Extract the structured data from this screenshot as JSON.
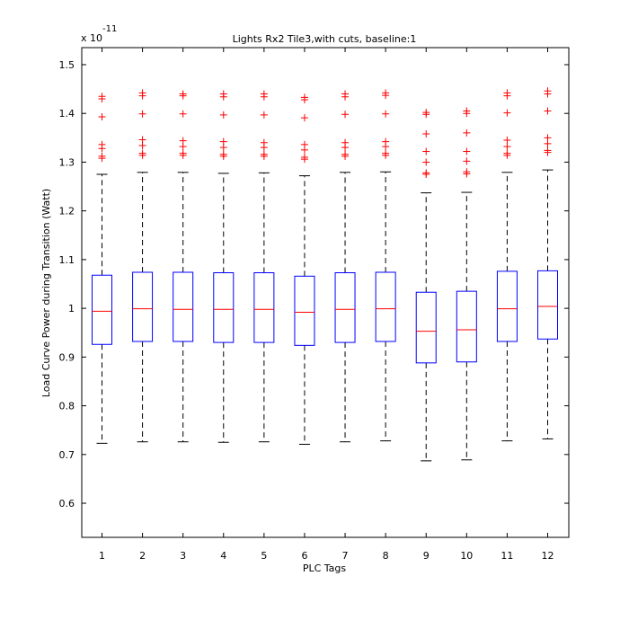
{
  "chart_data": {
    "type": "box",
    "title": "Lights Rx2 Tile3,with cuts, baseline:1",
    "xlabel": "PLC Tags",
    "ylabel": "Load Curve Power during Transition (Watt)",
    "y_multiplier": {
      "base": "x 10",
      "exponent": "-11"
    },
    "ylim": [
      0.53,
      1.535
    ],
    "yticks": [
      {
        "value": 0.6,
        "label": "0.6"
      },
      {
        "value": 0.7,
        "label": "0.7"
      },
      {
        "value": 0.8,
        "label": "0.8"
      },
      {
        "value": 0.9,
        "label": "0.9"
      },
      {
        "value": 1.0,
        "label": "1"
      },
      {
        "value": 1.1,
        "label": "1.1"
      },
      {
        "value": 1.2,
        "label": "1.2"
      },
      {
        "value": 1.3,
        "label": "1.3"
      },
      {
        "value": 1.4,
        "label": "1.4"
      },
      {
        "value": 1.5,
        "label": "1.5"
      }
    ],
    "categories": [
      "1",
      "2",
      "3",
      "4",
      "5",
      "6",
      "7",
      "8",
      "9",
      "10",
      "11",
      "12"
    ],
    "grid": false,
    "colors": {
      "box": "#0000ff",
      "median": "#ff0000",
      "outlier": "#ff0000",
      "whisker": "#000000"
    },
    "boxes": [
      {
        "whisker_low": 0.723,
        "q1": 0.926,
        "median": 0.994,
        "q3": 1.068,
        "whisker_high": 1.275,
        "outliers": [
          1.435,
          1.43,
          1.393,
          1.336,
          1.328,
          1.312,
          1.308
        ]
      },
      {
        "whisker_low": 0.726,
        "q1": 0.932,
        "median": 0.999,
        "q3": 1.074,
        "whisker_high": 1.279,
        "outliers": [
          1.442,
          1.436,
          1.399,
          1.346,
          1.334,
          1.318,
          1.314
        ]
      },
      {
        "whisker_low": 0.726,
        "q1": 0.932,
        "median": 0.998,
        "q3": 1.074,
        "whisker_high": 1.279,
        "outliers": [
          1.44,
          1.436,
          1.399,
          1.344,
          1.332,
          1.318,
          1.314
        ]
      },
      {
        "whisker_low": 0.725,
        "q1": 0.93,
        "median": 0.998,
        "q3": 1.073,
        "whisker_high": 1.277,
        "outliers": [
          1.44,
          1.434,
          1.397,
          1.342,
          1.33,
          1.316,
          1.312
        ]
      },
      {
        "whisker_low": 0.726,
        "q1": 0.93,
        "median": 0.998,
        "q3": 1.073,
        "whisker_high": 1.278,
        "outliers": [
          1.44,
          1.434,
          1.397,
          1.34,
          1.33,
          1.316,
          1.312
        ]
      },
      {
        "whisker_low": 0.721,
        "q1": 0.924,
        "median": 0.992,
        "q3": 1.066,
        "whisker_high": 1.272,
        "outliers": [
          1.433,
          1.428,
          1.391,
          1.336,
          1.325,
          1.31,
          1.306
        ]
      },
      {
        "whisker_low": 0.726,
        "q1": 0.93,
        "median": 0.998,
        "q3": 1.073,
        "whisker_high": 1.279,
        "outliers": [
          1.44,
          1.434,
          1.398,
          1.34,
          1.33,
          1.316,
          1.312
        ]
      },
      {
        "whisker_low": 0.728,
        "q1": 0.932,
        "median": 0.999,
        "q3": 1.074,
        "whisker_high": 1.28,
        "outliers": [
          1.442,
          1.437,
          1.399,
          1.342,
          1.332,
          1.318,
          1.314
        ]
      },
      {
        "whisker_low": 0.687,
        "q1": 0.888,
        "median": 0.953,
        "q3": 1.033,
        "whisker_high": 1.237,
        "outliers": [
          1.402,
          1.398,
          1.358,
          1.322,
          1.3,
          1.278,
          1.275
        ]
      },
      {
        "whisker_low": 0.689,
        "q1": 0.89,
        "median": 0.956,
        "q3": 1.035,
        "whisker_high": 1.238,
        "outliers": [
          1.405,
          1.4,
          1.36,
          1.322,
          1.302,
          1.28,
          1.276
        ]
      },
      {
        "whisker_low": 0.728,
        "q1": 0.932,
        "median": 0.999,
        "q3": 1.076,
        "whisker_high": 1.279,
        "outliers": [
          1.442,
          1.436,
          1.401,
          1.345,
          1.332,
          1.318,
          1.314
        ]
      },
      {
        "whisker_low": 0.732,
        "q1": 0.937,
        "median": 1.004,
        "q3": 1.077,
        "whisker_high": 1.284,
        "outliers": [
          1.446,
          1.44,
          1.405,
          1.35,
          1.338,
          1.324,
          1.32
        ]
      }
    ]
  }
}
